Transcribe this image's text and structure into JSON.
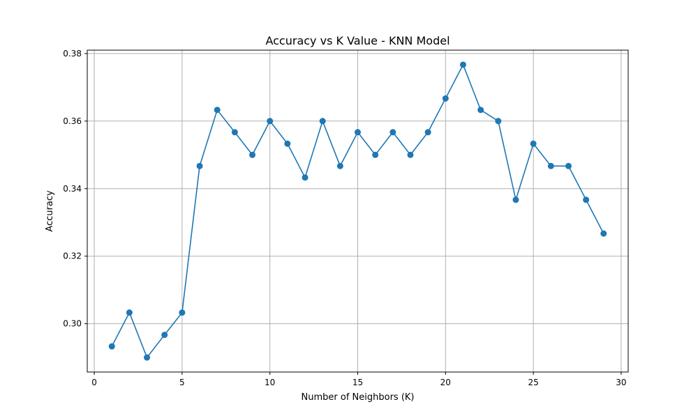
{
  "chart_data": {
    "type": "line",
    "title": "Accuracy vs K Value - KNN Model",
    "xlabel": "Number of Neighbors (K)",
    "ylabel": "Accuracy",
    "xlim": [
      -0.4,
      30.4
    ],
    "ylim": [
      0.2857,
      0.381
    ],
    "xticks": [
      0,
      5,
      10,
      15,
      20,
      25,
      30
    ],
    "yticks": [
      0.3,
      0.32,
      0.34,
      0.36,
      0.38
    ],
    "xtick_labels": [
      "0",
      "5",
      "10",
      "15",
      "20",
      "25",
      "30"
    ],
    "ytick_labels": [
      "0.30",
      "0.32",
      "0.34",
      "0.36",
      "0.38"
    ],
    "grid": true,
    "marker": "circle",
    "color": "#1f77b4",
    "series": [
      {
        "x": [
          1,
          2,
          3,
          4,
          5,
          6,
          7,
          8,
          9,
          10,
          11,
          12,
          13,
          14,
          15,
          16,
          17,
          18,
          19,
          20,
          21,
          22,
          23,
          24,
          25,
          26,
          27,
          28,
          29
        ],
        "values": [
          0.2933,
          0.3033,
          0.29,
          0.2967,
          0.3033,
          0.3467,
          0.3633,
          0.3567,
          0.35,
          0.36,
          0.3533,
          0.3433,
          0.36,
          0.3467,
          0.3567,
          0.35,
          0.3567,
          0.35,
          0.3567,
          0.3667,
          0.3767,
          0.3633,
          0.36,
          0.3367,
          0.3533,
          0.3467,
          0.3467,
          0.3367,
          0.3267
        ]
      }
    ]
  }
}
